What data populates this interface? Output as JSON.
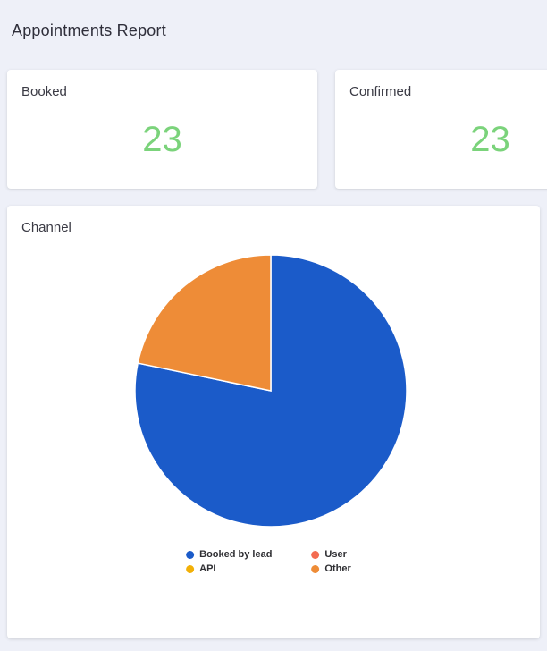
{
  "page": {
    "title": "Appointments Report"
  },
  "cards": [
    {
      "label": "Booked",
      "value": "23"
    },
    {
      "label": "Confirmed",
      "value": "23"
    }
  ],
  "channel_card": {
    "title": "Channel"
  },
  "chart_data": {
    "type": "pie",
    "title": "Channel",
    "legend_position": "bottom",
    "total": 23,
    "slices": [
      {
        "label": "Booked by lead",
        "value": 18,
        "color": "#1b5bc9"
      },
      {
        "label": "API",
        "value": 0,
        "color": "#f2b007"
      },
      {
        "label": "User",
        "value": 0,
        "color": "#f36c51"
      },
      {
        "label": "Other",
        "value": 5,
        "color": "#ee8c37"
      }
    ]
  },
  "colors": {
    "background": "#eef0f8",
    "card_background": "#ffffff",
    "stat_value_green": "#7bd37b"
  }
}
